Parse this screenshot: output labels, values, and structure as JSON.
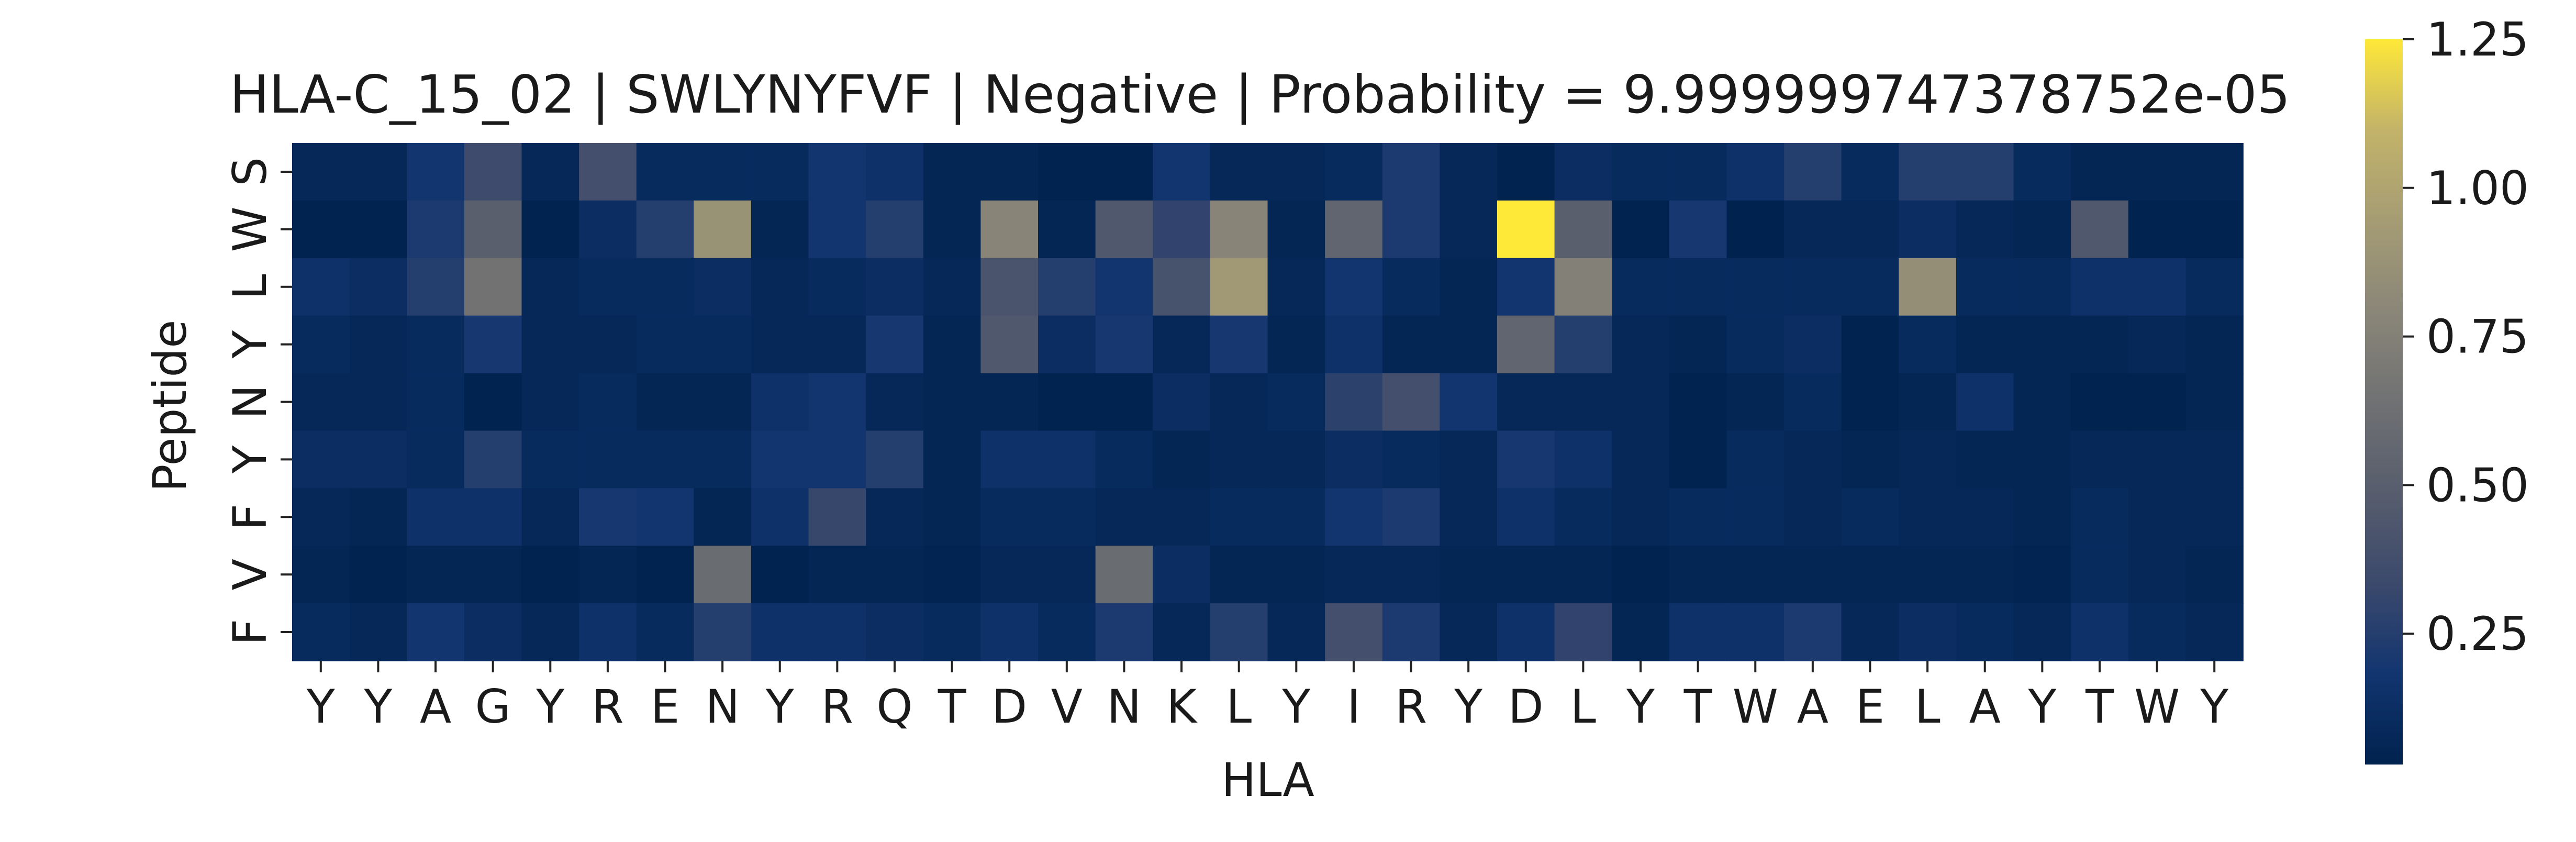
{
  "chart_data": {
    "type": "heatmap",
    "title": "HLA-C_15_02 | SWLYNYFVF | Negative | Probability = 9.999999747378752e-05",
    "xlabel": "HLA",
    "ylabel": "Peptide",
    "x_tick_labels": [
      "Y",
      "Y",
      "A",
      "G",
      "Y",
      "R",
      "E",
      "N",
      "Y",
      "R",
      "Q",
      "T",
      "D",
      "V",
      "N",
      "K",
      "L",
      "Y",
      "I",
      "R",
      "Y",
      "D",
      "L",
      "Y",
      "T",
      "W",
      "A",
      "E",
      "L",
      "A",
      "Y",
      "T",
      "W",
      "Y"
    ],
    "y_tick_labels": [
      "S",
      "W",
      "L",
      "Y",
      "N",
      "Y",
      "F",
      "V",
      "F"
    ],
    "colormap": "cividis",
    "colorbar": {
      "range": [
        0.03,
        1.25
      ],
      "ticks": [
        0.25,
        0.5,
        0.75,
        1.0,
        1.25
      ],
      "tick_labels": [
        "0.25",
        "0.50",
        "0.75",
        "1.00",
        "1.25"
      ]
    },
    "values": [
      [
        0.08,
        0.08,
        0.18,
        0.35,
        0.08,
        0.38,
        0.1,
        0.1,
        0.1,
        0.18,
        0.15,
        0.06,
        0.06,
        0.04,
        0.04,
        0.18,
        0.08,
        0.08,
        0.1,
        0.22,
        0.08,
        0.04,
        0.12,
        0.1,
        0.1,
        0.15,
        0.25,
        0.1,
        0.25,
        0.25,
        0.1,
        0.06,
        0.06,
        0.06
      ],
      [
        0.04,
        0.04,
        0.22,
        0.5,
        0.04,
        0.12,
        0.25,
        0.88,
        0.06,
        0.18,
        0.25,
        0.06,
        0.78,
        0.06,
        0.45,
        0.3,
        0.78,
        0.06,
        0.55,
        0.22,
        0.08,
        1.25,
        0.5,
        0.04,
        0.2,
        0.03,
        0.08,
        0.08,
        0.12,
        0.08,
        0.06,
        0.45,
        0.04,
        0.04
      ],
      [
        0.15,
        0.12,
        0.25,
        0.65,
        0.08,
        0.1,
        0.1,
        0.12,
        0.08,
        0.1,
        0.12,
        0.08,
        0.42,
        0.25,
        0.18,
        0.4,
        0.92,
        0.08,
        0.18,
        0.1,
        0.06,
        0.18,
        0.75,
        0.1,
        0.1,
        0.1,
        0.1,
        0.1,
        0.85,
        0.1,
        0.1,
        0.15,
        0.15,
        0.1
      ],
      [
        0.1,
        0.08,
        0.1,
        0.2,
        0.08,
        0.08,
        0.1,
        0.1,
        0.08,
        0.08,
        0.2,
        0.06,
        0.45,
        0.12,
        0.2,
        0.08,
        0.2,
        0.06,
        0.15,
        0.06,
        0.06,
        0.55,
        0.25,
        0.08,
        0.06,
        0.1,
        0.12,
        0.04,
        0.1,
        0.06,
        0.06,
        0.06,
        0.08,
        0.06
      ],
      [
        0.08,
        0.08,
        0.1,
        0.04,
        0.08,
        0.1,
        0.06,
        0.06,
        0.15,
        0.18,
        0.08,
        0.06,
        0.06,
        0.04,
        0.04,
        0.12,
        0.08,
        0.1,
        0.28,
        0.38,
        0.18,
        0.08,
        0.08,
        0.08,
        0.04,
        0.06,
        0.1,
        0.04,
        0.06,
        0.15,
        0.06,
        0.04,
        0.04,
        0.06
      ],
      [
        0.12,
        0.12,
        0.1,
        0.25,
        0.1,
        0.1,
        0.1,
        0.1,
        0.18,
        0.18,
        0.25,
        0.06,
        0.15,
        0.15,
        0.1,
        0.06,
        0.08,
        0.08,
        0.12,
        0.1,
        0.08,
        0.2,
        0.15,
        0.08,
        0.04,
        0.1,
        0.08,
        0.06,
        0.08,
        0.06,
        0.06,
        0.08,
        0.08,
        0.08
      ],
      [
        0.08,
        0.06,
        0.15,
        0.15,
        0.08,
        0.2,
        0.18,
        0.06,
        0.15,
        0.32,
        0.08,
        0.06,
        0.1,
        0.1,
        0.08,
        0.08,
        0.1,
        0.1,
        0.18,
        0.22,
        0.08,
        0.15,
        0.1,
        0.08,
        0.1,
        0.1,
        0.08,
        0.1,
        0.08,
        0.08,
        0.06,
        0.1,
        0.08,
        0.08
      ],
      [
        0.06,
        0.04,
        0.06,
        0.06,
        0.04,
        0.06,
        0.04,
        0.6,
        0.04,
        0.06,
        0.06,
        0.05,
        0.08,
        0.08,
        0.6,
        0.12,
        0.06,
        0.06,
        0.08,
        0.08,
        0.06,
        0.06,
        0.06,
        0.04,
        0.06,
        0.06,
        0.06,
        0.06,
        0.06,
        0.06,
        0.05,
        0.1,
        0.08,
        0.06
      ],
      [
        0.1,
        0.08,
        0.18,
        0.12,
        0.08,
        0.15,
        0.1,
        0.25,
        0.15,
        0.15,
        0.12,
        0.1,
        0.15,
        0.1,
        0.22,
        0.08,
        0.25,
        0.08,
        0.38,
        0.22,
        0.08,
        0.15,
        0.3,
        0.06,
        0.15,
        0.15,
        0.22,
        0.08,
        0.12,
        0.1,
        0.08,
        0.15,
        0.1,
        0.08
      ]
    ]
  }
}
